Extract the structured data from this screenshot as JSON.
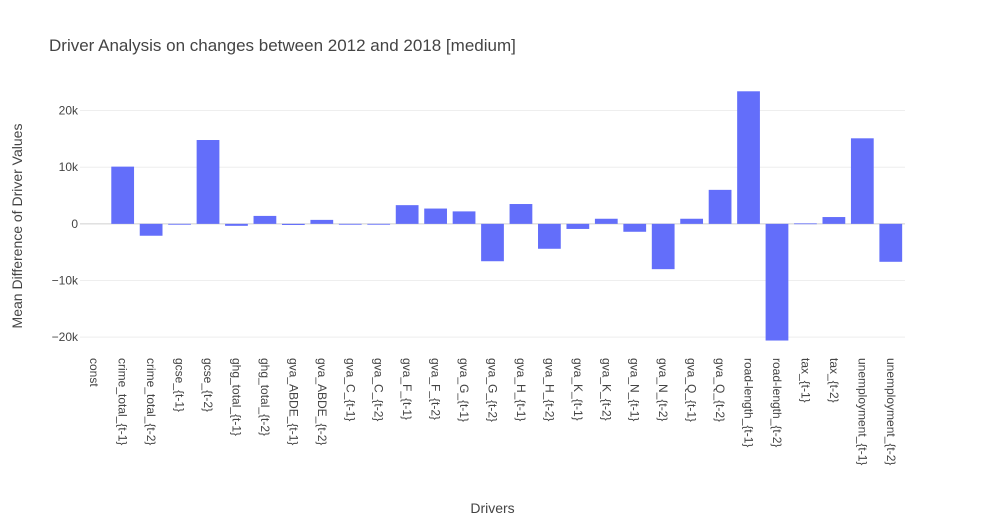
{
  "chart_data": {
    "type": "bar",
    "title": "Driver Analysis on changes between 2012 and 2018 [medium]",
    "xlabel": "Drivers",
    "ylabel": "Mean Difference of Driver Values",
    "ylim": [
      -22800,
      26100
    ],
    "y_ticks": [
      -20000,
      -10000,
      0,
      10000,
      20000
    ],
    "y_tick_labels": [
      "−20k",
      "−10k",
      "0",
      "10k",
      "20k"
    ],
    "grid": true,
    "legend": "none",
    "bar_color": "#636efa",
    "categories": [
      "const",
      "crime_total_{t-1}",
      "crime_total_{t-2}",
      "gcse_{t-1}",
      "gcse_{t-2}",
      "ghg_total_{t-1}",
      "ghg_total_{t-2}",
      "gva_ABDE_{t-1}",
      "gva_ABDE_{t-2}",
      "gva_C_{t-1}",
      "gva_C_{t-2}",
      "gva_F_{t-1}",
      "gva_F_{t-2}",
      "gva_G_{t-1}",
      "gva_G_{t-2}",
      "gva_H_{t-1}",
      "gva_H_{t-2}",
      "gva_K_{t-1}",
      "gva_K_{t-2}",
      "gva_N_{t-1}",
      "gva_N_{t-2}",
      "gva_Q_{t-1}",
      "gva_Q_{t-2}",
      "road-length_{t-1}",
      "road-length_{t-2}",
      "tax_{t-1}",
      "tax_{t-2}",
      "unemployment_{t-1}",
      "unemployment_{t-2}"
    ],
    "values": [
      0,
      10100,
      -2100,
      -150,
      14800,
      -350,
      1400,
      -200,
      700,
      -150,
      -150,
      3300,
      2700,
      2200,
      -6600,
      3500,
      -4400,
      -900,
      900,
      -1400,
      -8000,
      900,
      6000,
      23400,
      -20600,
      80,
      1200,
      15100,
      -6700
    ]
  }
}
